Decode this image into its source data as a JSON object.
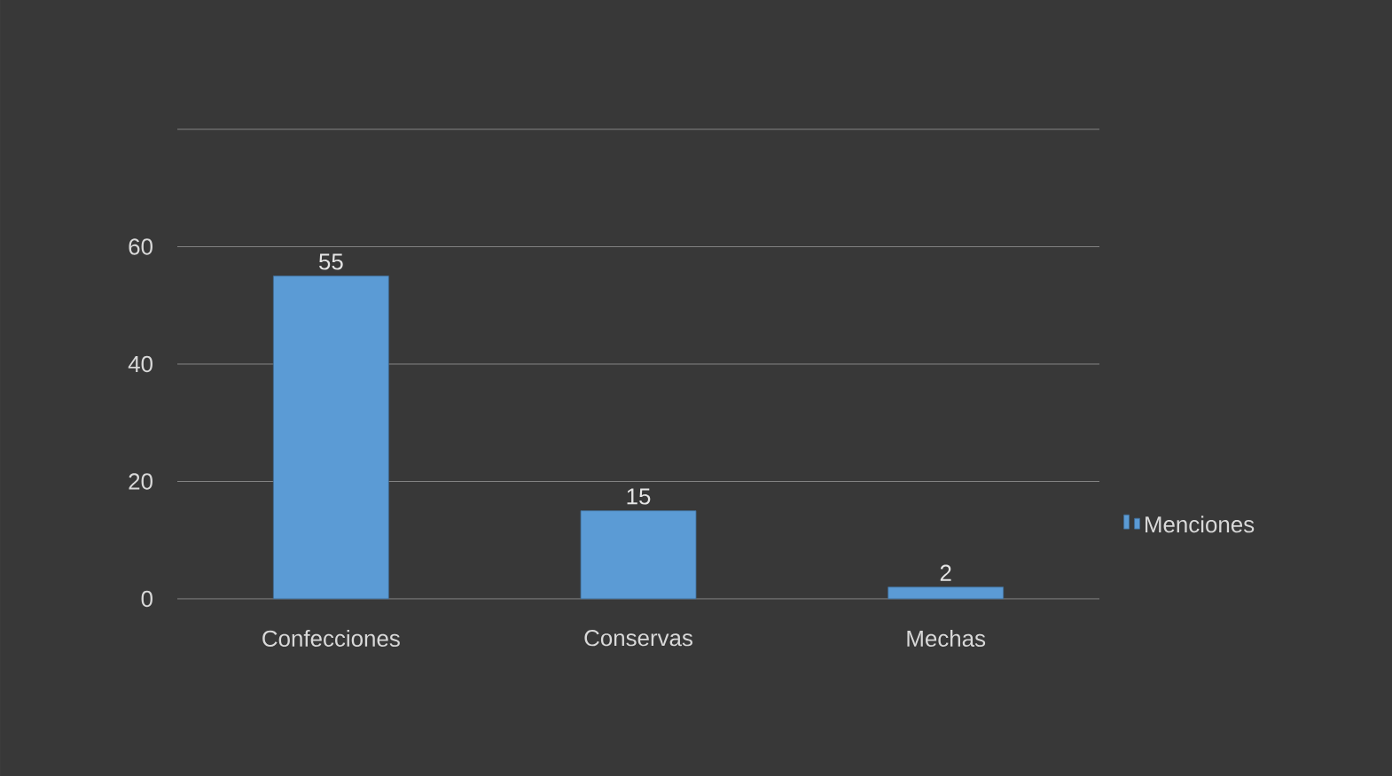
{
  "chart_data": {
    "type": "bar",
    "categories": [
      "Confecciones",
      "Conservas",
      "Mechas"
    ],
    "series": [
      {
        "name": "Menciones",
        "color": "#5b9bd5",
        "values": [
          55,
          15,
          2
        ]
      }
    ],
    "ylim": [
      0,
      80
    ],
    "yticks": [
      0,
      20,
      40,
      60,
      {
        "value": 80,
        "label": null
      }
    ],
    "grid": "y",
    "legend": "right",
    "data_labels": true
  }
}
